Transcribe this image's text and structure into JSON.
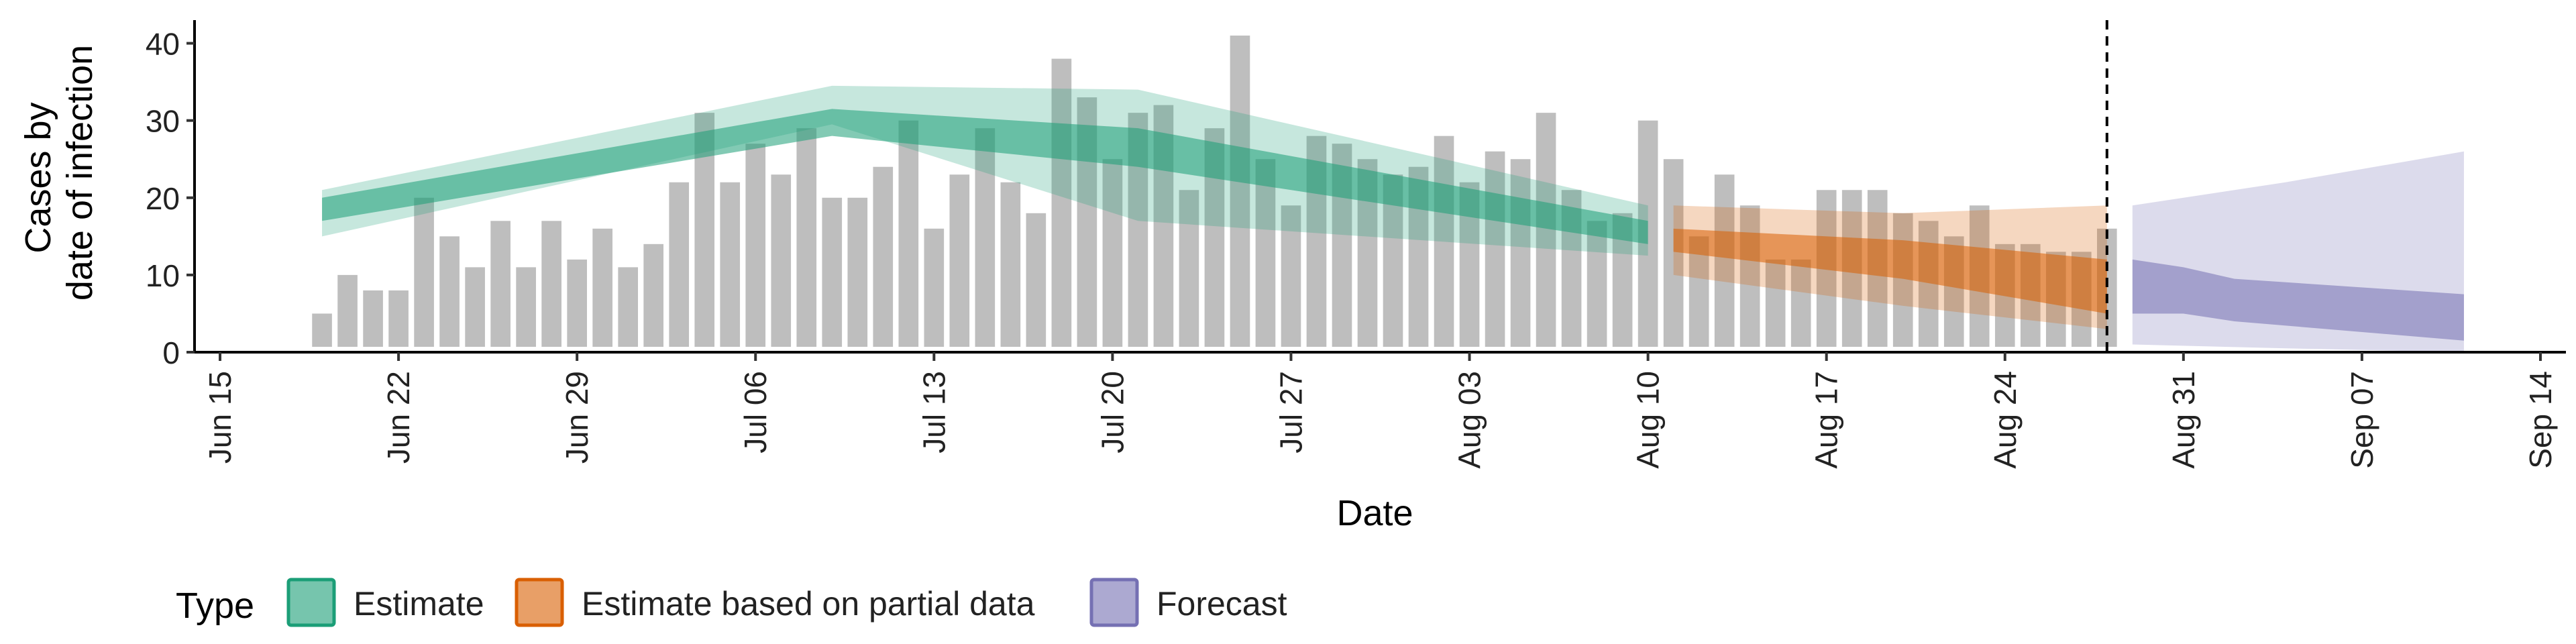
{
  "chart_data": {
    "type": "bar",
    "xlabel": "Date",
    "ylabel_lines": [
      "Cases by",
      "date of infection"
    ],
    "ylim": [
      0,
      43
    ],
    "y_ticks": [
      0,
      10,
      20,
      30,
      40
    ],
    "x_ticks": [
      {
        "date": "2020-06-15",
        "label": "Jun 15"
      },
      {
        "date": "2020-06-22",
        "label": "Jun 22"
      },
      {
        "date": "2020-06-29",
        "label": "Jun 29"
      },
      {
        "date": "2020-07-06",
        "label": "Jul 06"
      },
      {
        "date": "2020-07-13",
        "label": "Jul 13"
      },
      {
        "date": "2020-07-20",
        "label": "Jul 20"
      },
      {
        "date": "2020-07-27",
        "label": "Jul 27"
      },
      {
        "date": "2020-08-03",
        "label": "Aug 03"
      },
      {
        "date": "2020-08-10",
        "label": "Aug 10"
      },
      {
        "date": "2020-08-17",
        "label": "Aug 17"
      },
      {
        "date": "2020-08-24",
        "label": "Aug 24"
      },
      {
        "date": "2020-08-31",
        "label": "Aug 31"
      },
      {
        "date": "2020-09-07",
        "label": "Sep 07"
      },
      {
        "date": "2020-09-14",
        "label": "Sep 14"
      }
    ],
    "xlim": [
      "2020-06-14",
      "2020-09-15"
    ],
    "reference_line_date": "2020-08-28",
    "bars": {
      "start_date": "2020-06-19",
      "color": "#bebebe",
      "values": [
        5,
        10,
        8,
        8,
        20,
        15,
        11,
        17,
        11,
        17,
        12,
        16,
        11,
        14,
        22,
        31,
        22,
        27,
        23,
        29,
        20,
        20,
        24,
        30,
        16,
        23,
        29,
        22,
        18,
        38,
        33,
        25,
        31,
        32,
        21,
        29,
        41,
        25,
        19,
        28,
        27,
        25,
        23,
        24,
        28,
        22,
        26,
        25,
        31,
        21,
        17,
        18,
        30,
        25,
        15,
        23,
        19,
        12,
        12,
        21,
        21,
        21,
        18,
        17,
        15,
        19,
        14,
        14,
        13,
        13,
        16
      ]
    },
    "legend": {
      "title": "Type",
      "position": "bottom",
      "entries": [
        {
          "label": "Estimate",
          "fill": "#1b9e77",
          "stroke": "#1b9e77"
        },
        {
          "label": "Estimate based on partial data",
          "fill": "#d95f02",
          "stroke": "#d95f02"
        },
        {
          "label": "Forecast",
          "fill": "#7570b3",
          "stroke": "#7570b3"
        }
      ]
    },
    "series": [
      {
        "type_key": "Estimate",
        "color": "#1b9e77",
        "start_date": "2020-06-19",
        "end_date": "2020-08-10",
        "outer": [
          [
            15,
            21
          ],
          [
            29.5,
            34.5
          ],
          [
            17,
            34
          ],
          [
            12.5,
            19
          ]
        ],
        "inner": [
          [
            17,
            20
          ],
          [
            28,
            31.5
          ],
          [
            24,
            29
          ],
          [
            14,
            17
          ]
        ],
        "outer_dates": [
          "2020-06-19",
          "2020-07-09",
          "2020-07-21",
          "2020-08-10"
        ],
        "inner_dates": [
          "2020-06-19",
          "2020-07-09",
          "2020-07-21",
          "2020-08-10"
        ]
      },
      {
        "type_key": "Estimate based on partial data",
        "color": "#d95f02",
        "start_date": "2020-08-11",
        "end_date": "2020-08-28",
        "outer_dates": [
          "2020-08-11",
          "2020-08-20",
          "2020-08-28"
        ],
        "outer": [
          [
            10,
            19
          ],
          [
            6,
            18
          ],
          [
            3,
            19
          ]
        ],
        "inner_dates": [
          "2020-08-11",
          "2020-08-20",
          "2020-08-28"
        ],
        "inner": [
          [
            13,
            16
          ],
          [
            9.5,
            14.5
          ],
          [
            5,
            12
          ]
        ]
      },
      {
        "type_key": "Forecast",
        "color": "#7570b3",
        "start_date": "2020-08-29",
        "end_date": "2020-09-11",
        "outer_dates": [
          "2020-08-29",
          "2020-09-04",
          "2020-09-11"
        ],
        "outer": [
          [
            1,
            19
          ],
          [
            0.5,
            22
          ],
          [
            0,
            26
          ]
        ],
        "inner_dates": [
          "2020-08-29",
          "2020-08-31",
          "2020-09-02",
          "2020-09-11"
        ],
        "inner": [
          [
            5,
            12
          ],
          [
            5,
            11
          ],
          [
            4,
            9.5
          ],
          [
            1.5,
            7.5
          ]
        ]
      }
    ]
  }
}
